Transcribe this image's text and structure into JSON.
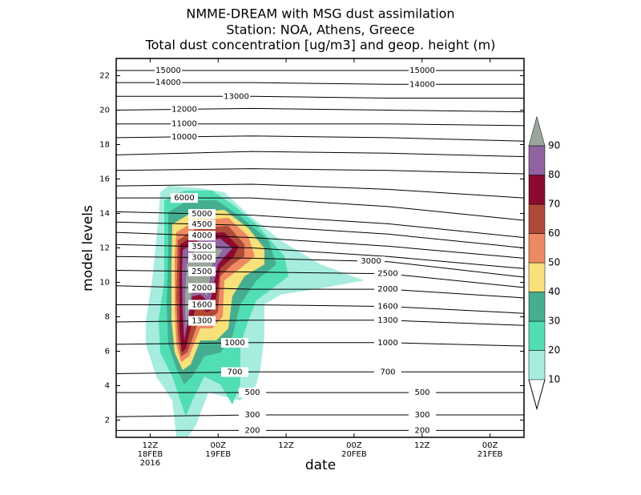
{
  "chart_data": {
    "type": "contour",
    "title": [
      "NMME-DREAM with MSG dust assimilation",
      "Station: NOA, Athens, Greece",
      "Total dust concentration [ug/m3] and geop. height (m)"
    ],
    "xlabel": "date",
    "ylabel": "model levels",
    "xlim": [
      6,
      78
    ],
    "ylim": [
      1,
      23
    ],
    "xticks": [
      {
        "value": 12,
        "label": "12Z",
        "sublabels": [
          "18FEB",
          "2016"
        ]
      },
      {
        "value": 24,
        "label": "00Z",
        "sublabels": [
          "19FEB"
        ]
      },
      {
        "value": 36,
        "label": "12Z",
        "sublabels": []
      },
      {
        "value": 48,
        "label": "00Z",
        "sublabels": [
          "20FEB"
        ]
      },
      {
        "value": 60,
        "label": "12Z",
        "sublabels": []
      },
      {
        "value": 72,
        "label": "00Z",
        "sublabels": [
          "21FEB"
        ]
      }
    ],
    "yticks": [
      2,
      4,
      6,
      8,
      10,
      12,
      14,
      16,
      18,
      20,
      22
    ],
    "colorbar": {
      "levels": [
        10,
        20,
        30,
        40,
        50,
        60,
        70,
        80,
        90
      ],
      "colors": [
        "#a6ecdf",
        "#52deb4",
        "#46ae90",
        "#f8e07a",
        "#ee8a62",
        "#b04a38",
        "#8c0a30",
        "#9064a0"
      ],
      "over_color": "#9aa69c"
    },
    "contour_x": [
      6,
      30,
      54,
      78
    ],
    "contours": [
      {
        "level": 15000,
        "values": [
          22.3,
          22.3,
          22.3,
          22.3
        ]
      },
      {
        "level": 14000,
        "values": [
          21.6,
          21.6,
          21.5,
          21.5
        ]
      },
      {
        "level": 13000,
        "values": [
          20.8,
          20.8,
          20.7,
          20.7
        ]
      },
      {
        "level": 12000,
        "values": [
          20.0,
          20.1,
          20.0,
          19.9
        ]
      },
      {
        "level": 11000,
        "values": [
          19.2,
          19.2,
          19.2,
          19.1
        ]
      },
      {
        "level": 10000,
        "values": [
          18.4,
          18.5,
          18.4,
          18.2
        ]
      },
      {
        "level": null,
        "values": [
          17.4,
          17.6,
          17.5,
          17.3
        ]
      },
      {
        "level": null,
        "values": [
          16.5,
          16.6,
          16.5,
          16.3
        ]
      },
      {
        "level": null,
        "values": [
          15.6,
          15.7,
          15.4,
          14.9
        ]
      },
      {
        "level": 6000,
        "values": [
          14.9,
          14.9,
          14.4,
          13.6
        ]
      },
      {
        "level": 5000,
        "values": [
          14.1,
          13.9,
          13.4,
          12.6
        ]
      },
      {
        "level": 4500,
        "values": [
          13.5,
          13.3,
          12.8,
          12.0
        ]
      },
      {
        "level": 4000,
        "values": [
          12.9,
          12.6,
          12.1,
          11.4
        ]
      },
      {
        "level": 3500,
        "values": [
          12.2,
          12.0,
          11.5,
          10.8
        ]
      },
      {
        "level": 3000,
        "values": [
          11.5,
          11.4,
          11.2,
          10.3
        ]
      },
      {
        "level": 2500,
        "values": [
          10.7,
          10.6,
          10.5,
          9.7
        ]
      },
      {
        "level": 2000,
        "values": [
          9.8,
          9.6,
          9.6,
          9.1
        ]
      },
      {
        "level": 1600,
        "values": [
          8.7,
          8.7,
          8.6,
          8.2
        ]
      },
      {
        "level": 1300,
        "values": [
          7.7,
          7.8,
          7.8,
          7.5
        ]
      },
      {
        "level": 1000,
        "values": [
          6.4,
          6.5,
          6.5,
          6.3
        ]
      },
      {
        "level": 700,
        "values": [
          4.7,
          4.8,
          4.8,
          4.8
        ]
      },
      {
        "level": 500,
        "values": [
          3.6,
          3.6,
          3.6,
          3.6
        ]
      },
      {
        "level": 300,
        "values": [
          2.2,
          2.3,
          2.3,
          2.3
        ]
      },
      {
        "level": 200,
        "values": [
          1.4,
          1.4,
          1.4,
          1.4
        ]
      }
    ]
  }
}
